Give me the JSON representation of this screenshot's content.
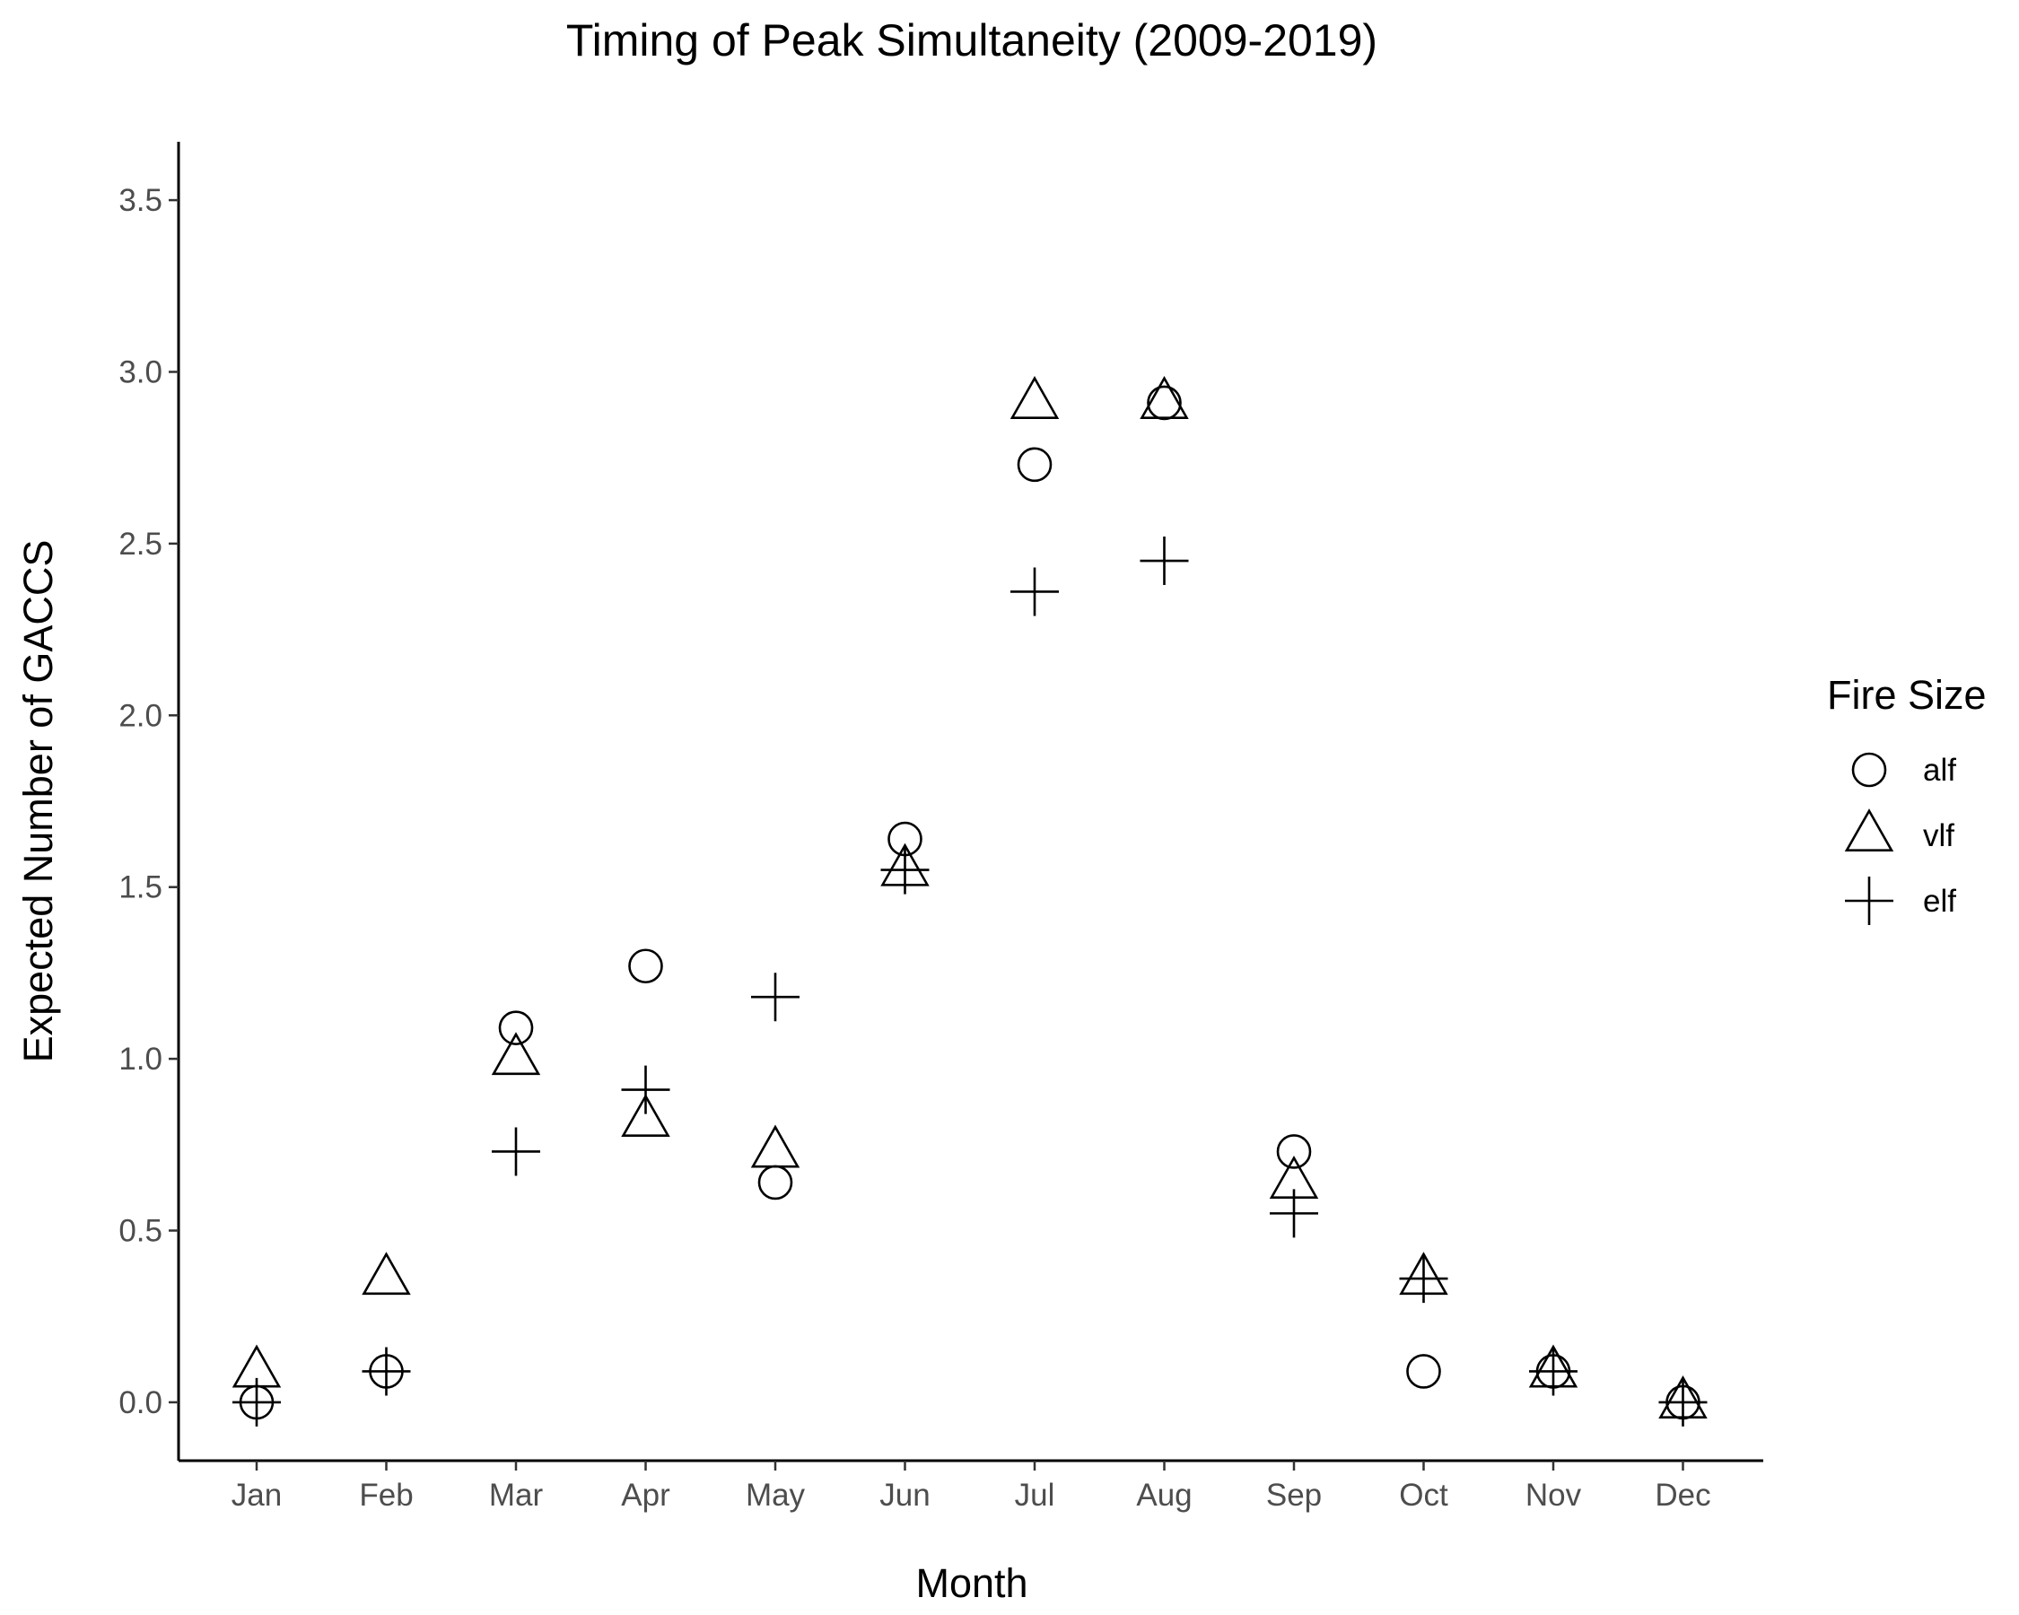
{
  "chart_data": {
    "type": "scatter",
    "title": "Timing of Peak Simultaneity (2009-2019)",
    "xlabel": "Month",
    "ylabel": "Expected Number of GACCS",
    "categories": [
      "Jan",
      "Feb",
      "Mar",
      "Apr",
      "May",
      "Jun",
      "Jul",
      "Aug",
      "Sep",
      "Oct",
      "Nov",
      "Dec"
    ],
    "ylim": [
      -0.17,
      3.67
    ],
    "yticks": [
      0.0,
      0.5,
      1.0,
      1.5,
      2.0,
      2.5,
      3.0,
      3.5
    ],
    "ytick_labels": [
      "0.0",
      "0.5",
      "1.0",
      "1.5",
      "2.0",
      "2.5",
      "3.0",
      "3.5"
    ],
    "grid": false,
    "legend": {
      "title": "Fire Size",
      "position": "right"
    },
    "series": [
      {
        "name": "alf",
        "shape": "circle",
        "values": [
          0.0,
          0.09,
          1.09,
          1.27,
          0.64,
          1.64,
          2.73,
          2.91,
          0.73,
          0.09,
          0.09,
          0.0
        ]
      },
      {
        "name": "vlf",
        "shape": "triangle",
        "values": [
          0.09,
          0.36,
          1.0,
          0.82,
          0.73,
          1.55,
          2.91,
          2.91,
          0.64,
          0.36,
          0.09,
          0.0
        ]
      },
      {
        "name": "elf",
        "shape": "plus",
        "values": [
          0.0,
          0.09,
          0.73,
          0.91,
          1.18,
          1.55,
          2.36,
          2.45,
          0.55,
          0.36,
          0.09,
          0.0
        ]
      }
    ],
    "colors": {
      "marker": "#000000",
      "tick_label": "#4d4d4d",
      "background": "#ffffff"
    }
  }
}
